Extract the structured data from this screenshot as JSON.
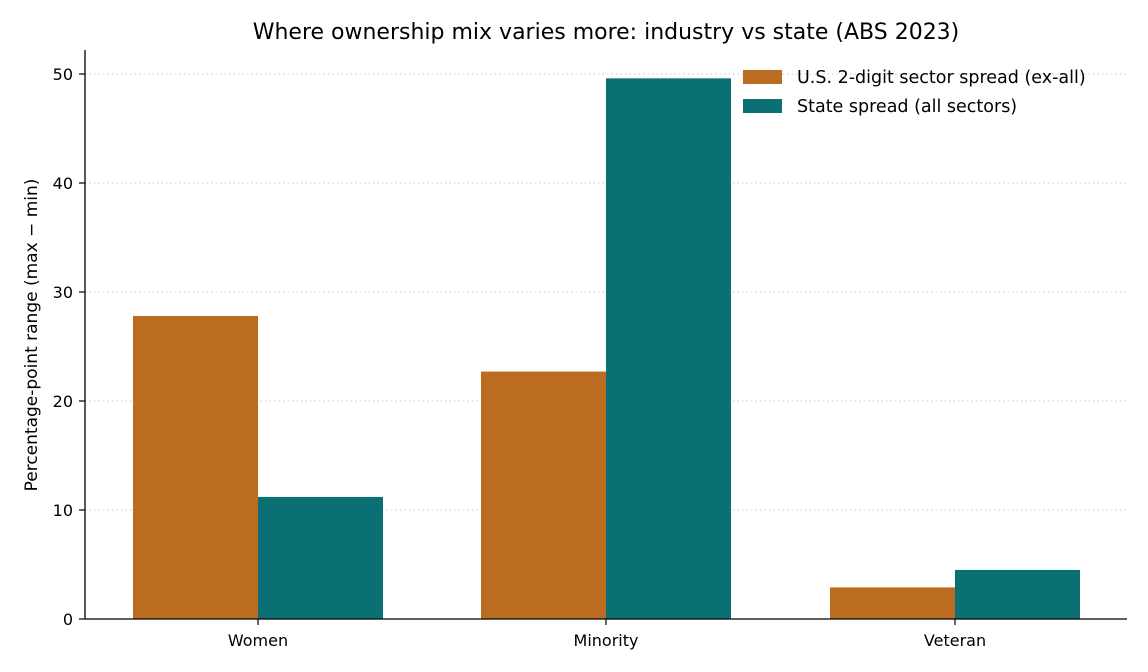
{
  "chart_data": {
    "type": "bar",
    "title": "Where ownership mix varies more: industry vs state (ABS 2023)",
    "xlabel": "",
    "ylabel": "Percentage-point range (max − min)",
    "categories": [
      "Women",
      "Minority",
      "Veteran"
    ],
    "series": [
      {
        "name": "U.S. 2-digit sector spread (ex-all)",
        "values": [
          27.8,
          22.7,
          2.9
        ],
        "color": "#bc6c21"
      },
      {
        "name": "State spread (all sectors)",
        "values": [
          11.2,
          49.6,
          4.5
        ],
        "color": "#0b7073"
      }
    ],
    "ylim": [
      0,
      52
    ],
    "yticks": [
      0,
      10,
      20,
      30,
      40,
      50
    ],
    "grid": "horizontal-dotted",
    "legend_position": "top-right"
  }
}
